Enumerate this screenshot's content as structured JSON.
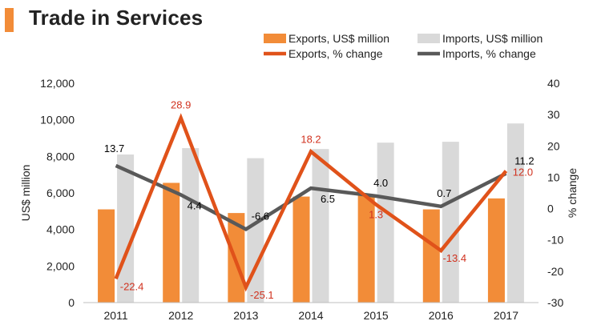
{
  "title": "Trade in Services",
  "colors": {
    "accent": "#f28c38",
    "exports_bar": "#f28c38",
    "imports_bar": "#d9d9d9",
    "exports_line": "#e0521a",
    "imports_line": "#595959",
    "exports_label": "#d1321f",
    "imports_label": "#000000"
  },
  "chart_data": {
    "type": "bar",
    "categories": [
      "2011",
      "2012",
      "2013",
      "2014",
      "2015",
      "2016",
      "2017"
    ],
    "series": [
      {
        "name": "Exports, US$ million",
        "kind": "bar",
        "axis": "left",
        "values": [
          5100,
          6550,
          4900,
          5800,
          5880,
          5100,
          5700
        ]
      },
      {
        "name": "Imports, US$ million",
        "kind": "bar",
        "axis": "left",
        "values": [
          8100,
          8450,
          7900,
          8400,
          8750,
          8800,
          9800
        ]
      },
      {
        "name": "Exports, % change",
        "kind": "line",
        "axis": "right",
        "values": [
          -22.4,
          28.9,
          -25.1,
          18.2,
          1.3,
          -13.4,
          12.0
        ],
        "labels": [
          "-22.4",
          "28.9",
          "-25.1",
          "18.2",
          "1.3",
          "-13.4",
          "12.0"
        ]
      },
      {
        "name": "Imports, % change",
        "kind": "line",
        "axis": "right",
        "values": [
          13.7,
          4.4,
          -6.6,
          6.5,
          4.0,
          0.7,
          11.2
        ],
        "labels": [
          "13.7",
          "4.4",
          "-6.6",
          "6.5",
          "4.0",
          "0.7",
          "11.2"
        ]
      }
    ],
    "ylabel": "US$ million",
    "y2label": "% change",
    "ylim": [
      0,
      12000
    ],
    "y2lim": [
      -30,
      40
    ],
    "yticks": [
      "0",
      "2,000",
      "4,000",
      "6,000",
      "8,000",
      "10,000",
      "12,000"
    ],
    "y2ticks": [
      "-30",
      "-20",
      "-10",
      "0",
      "10",
      "20",
      "30",
      "40"
    ],
    "legend_position": "top-right",
    "grid": false
  }
}
